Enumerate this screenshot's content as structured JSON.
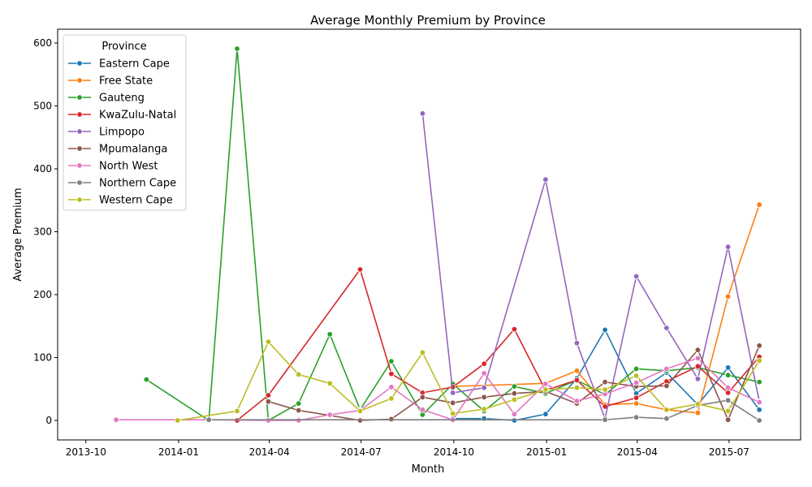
{
  "chart_data": {
    "type": "line",
    "title": "Average Monthly Premium by Province",
    "xlabel": "Month",
    "ylabel": "Average Premium",
    "x_ticks": [
      "2013-10",
      "2014-01",
      "2014-04",
      "2014-07",
      "2014-10",
      "2015-01",
      "2015-04",
      "2015-07"
    ],
    "y_ticks": [
      0,
      100,
      200,
      300,
      400,
      500,
      600
    ],
    "xlim": [
      "2013-09-03",
      "2015-09-10"
    ],
    "ylim": [
      -31,
      622
    ],
    "grid": false,
    "legend_title": "Province",
    "legend_position": "upper-left",
    "series": [
      {
        "name": "Eastern Cape",
        "color": "#1f77b4",
        "points": [
          [
            "2014-09-30",
            3
          ],
          [
            "2014-10-31",
            3
          ],
          [
            "2014-11-30",
            0
          ],
          [
            "2014-12-31",
            10
          ],
          [
            "2015-01-31",
            67
          ],
          [
            "2015-02-28",
            144
          ],
          [
            "2015-03-31",
            43
          ],
          [
            "2015-04-30",
            76
          ],
          [
            "2015-05-31",
            25
          ],
          [
            "2015-06-30",
            84
          ],
          [
            "2015-07-31",
            17
          ]
        ]
      },
      {
        "name": "Free State",
        "color": "#ff7f0e",
        "points": [
          [
            "2014-09-30",
            54
          ],
          [
            "2014-12-31",
            59
          ],
          [
            "2015-01-31",
            79
          ],
          [
            "2015-02-28",
            25
          ],
          [
            "2015-03-31",
            27
          ],
          [
            "2015-04-30",
            17
          ],
          [
            "2015-05-31",
            12
          ],
          [
            "2015-06-30",
            197
          ],
          [
            "2015-07-31",
            343
          ]
        ]
      },
      {
        "name": "Gauteng",
        "color": "#2ca02c",
        "points": [
          [
            "2013-11-30",
            65
          ],
          [
            "2014-01-31",
            0
          ],
          [
            "2014-02-28",
            591
          ],
          [
            "2014-03-31",
            0
          ],
          [
            "2014-04-30",
            27
          ],
          [
            "2014-05-31",
            137
          ],
          [
            "2014-06-30",
            17
          ],
          [
            "2014-07-31",
            94
          ],
          [
            "2014-08-31",
            9
          ],
          [
            "2014-09-30",
            58
          ],
          [
            "2014-10-31",
            15
          ],
          [
            "2014-11-30",
            54
          ],
          [
            "2014-12-31",
            43
          ],
          [
            "2015-01-31",
            64
          ],
          [
            "2015-02-28",
            41
          ],
          [
            "2015-03-31",
            82
          ],
          [
            "2015-04-30",
            79
          ],
          [
            "2015-05-31",
            84
          ],
          [
            "2015-06-30",
            72
          ],
          [
            "2015-07-31",
            61
          ]
        ]
      },
      {
        "name": "KwaZulu-Natal",
        "color": "#d62728",
        "points": [
          [
            "2014-02-28",
            0
          ],
          [
            "2014-03-31",
            40
          ],
          [
            "2014-06-30",
            240
          ],
          [
            "2014-07-31",
            74
          ],
          [
            "2014-08-31",
            44
          ],
          [
            "2014-09-30",
            53
          ],
          [
            "2014-10-31",
            90
          ],
          [
            "2014-11-30",
            145
          ],
          [
            "2014-12-31",
            48
          ],
          [
            "2015-01-31",
            64
          ],
          [
            "2015-02-28",
            22
          ],
          [
            "2015-03-31",
            36
          ],
          [
            "2015-04-30",
            62
          ],
          [
            "2015-05-31",
            86
          ],
          [
            "2015-06-30",
            44
          ],
          [
            "2015-07-31",
            101
          ]
        ]
      },
      {
        "name": "Limpopo",
        "color": "#9467bd",
        "points": [
          [
            "2014-08-31",
            488
          ],
          [
            "2014-09-30",
            44
          ],
          [
            "2014-10-31",
            52
          ],
          [
            "2014-12-31",
            383
          ],
          [
            "2015-01-31",
            123
          ],
          [
            "2015-02-28",
            3
          ],
          [
            "2015-03-31",
            229
          ],
          [
            "2015-04-30",
            147
          ],
          [
            "2015-05-31",
            66
          ],
          [
            "2015-06-30",
            276
          ],
          [
            "2015-07-31",
            30
          ]
        ]
      },
      {
        "name": "Mpumalanga",
        "color": "#8c564b",
        "points": [
          [
            "2014-03-31",
            30
          ],
          [
            "2014-04-30",
            16
          ],
          [
            "2014-05-31",
            8
          ],
          [
            "2014-06-30",
            0
          ],
          [
            "2014-07-31",
            2
          ],
          [
            "2014-08-31",
            37
          ],
          [
            "2014-09-30",
            28
          ],
          [
            "2014-10-31",
            37
          ],
          [
            "2014-11-30",
            43
          ],
          [
            "2014-12-31",
            46
          ],
          [
            "2015-01-31",
            27
          ],
          [
            "2015-02-28",
            61
          ],
          [
            "2015-03-31",
            54
          ],
          [
            "2015-04-30",
            55
          ],
          [
            "2015-05-31",
            112
          ],
          [
            "2015-06-30",
            1
          ],
          [
            "2015-07-31",
            119
          ]
        ]
      },
      {
        "name": "North West",
        "color": "#e377c2",
        "points": [
          [
            "2013-10-31",
            1
          ],
          [
            "2014-01-31",
            1
          ],
          [
            "2014-03-31",
            0
          ],
          [
            "2014-04-30",
            0
          ],
          [
            "2014-05-31",
            9
          ],
          [
            "2014-06-30",
            16
          ],
          [
            "2014-07-31",
            53
          ],
          [
            "2014-08-31",
            17
          ],
          [
            "2014-09-30",
            1
          ],
          [
            "2014-10-31",
            75
          ],
          [
            "2014-11-30",
            10
          ],
          [
            "2014-12-31",
            58
          ],
          [
            "2015-01-31",
            31
          ],
          [
            "2015-02-28",
            42
          ],
          [
            "2015-03-31",
            60
          ],
          [
            "2015-04-30",
            82
          ],
          [
            "2015-05-31",
            99
          ],
          [
            "2015-06-30",
            52
          ],
          [
            "2015-07-31",
            29
          ]
        ]
      },
      {
        "name": "Northern Cape",
        "color": "#7f7f7f",
        "points": [
          [
            "2014-01-31",
            1
          ],
          [
            "2015-02-28",
            1
          ],
          [
            "2015-03-31",
            5
          ],
          [
            "2015-04-30",
            3
          ],
          [
            "2015-05-31",
            24
          ],
          [
            "2015-06-30",
            32
          ],
          [
            "2015-07-31",
            0
          ]
        ]
      },
      {
        "name": "Western Cape",
        "color": "#bcbd22",
        "points": [
          [
            "2013-12-31",
            0
          ],
          [
            "2014-02-28",
            15
          ],
          [
            "2014-03-31",
            125
          ],
          [
            "2014-04-30",
            73
          ],
          [
            "2014-05-31",
            59
          ],
          [
            "2014-06-30",
            15
          ],
          [
            "2014-07-31",
            35
          ],
          [
            "2014-08-31",
            108
          ],
          [
            "2014-09-30",
            11
          ],
          [
            "2014-10-31",
            18
          ],
          [
            "2014-11-30",
            33
          ],
          [
            "2014-12-31",
            49
          ],
          [
            "2015-01-31",
            52
          ],
          [
            "2015-02-28",
            49
          ],
          [
            "2015-03-31",
            71
          ],
          [
            "2015-04-30",
            17
          ],
          [
            "2015-05-31",
            26
          ],
          [
            "2015-06-30",
            15
          ],
          [
            "2015-07-31",
            95
          ]
        ]
      }
    ]
  }
}
